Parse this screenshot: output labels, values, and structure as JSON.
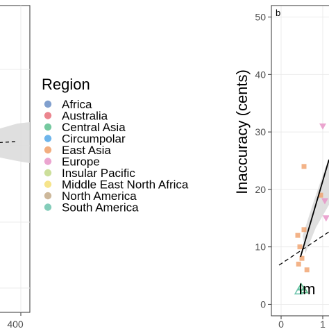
{
  "chart_data": [
    {
      "panel": "left (cropped)",
      "type": "scatter",
      "x_ticks": [
        "400"
      ],
      "grid": true
    },
    {
      "panel": "b",
      "type": "scatter",
      "tag": "b",
      "ylabel": "Inaccuracy (cents)",
      "xlabel": "Im",
      "ylim": [
        -2,
        52
      ],
      "y_ticks": [
        0,
        10,
        20,
        30,
        40,
        50
      ],
      "x_ticks": [
        "0",
        "1"
      ],
      "grid": true,
      "points": [
        {
          "x": 0.55,
          "y": 24,
          "region": "East Asia",
          "shape": "square"
        },
        {
          "x": 0.95,
          "y": 19,
          "region": "East Asia",
          "shape": "square"
        },
        {
          "x": 0.55,
          "y": 13,
          "region": "East Asia",
          "shape": "square"
        },
        {
          "x": 0.45,
          "y": 10,
          "region": "East Asia",
          "shape": "square"
        },
        {
          "x": 0.5,
          "y": 8,
          "region": "East Asia",
          "shape": "square"
        },
        {
          "x": 0.42,
          "y": 7,
          "region": "East Asia",
          "shape": "square"
        },
        {
          "x": 0.62,
          "y": 6,
          "region": "East Asia",
          "shape": "square"
        },
        {
          "x": 0.4,
          "y": 12,
          "region": "East Asia",
          "shape": "square"
        },
        {
          "x": 0.48,
          "y": 3,
          "region": "Central Asia",
          "shape": "triangle"
        },
        {
          "x": 0.42,
          "y": 2.3,
          "region": "South America",
          "shape": "triangle"
        },
        {
          "x": 0.55,
          "y": 2.5,
          "region": "Central Asia",
          "shape": "triangle"
        },
        {
          "x": 1.0,
          "y": 31,
          "region": "Europe",
          "shape": "triangle-down"
        },
        {
          "x": 1.05,
          "y": 18,
          "region": "Europe",
          "shape": "triangle-down"
        },
        {
          "x": 1.08,
          "y": 15,
          "region": "Europe",
          "shape": "triangle-down"
        }
      ]
    }
  ],
  "legend": {
    "title": "Region",
    "items": [
      {
        "label": "Africa",
        "color": "#6b8fc6"
      },
      {
        "label": "Australia",
        "color": "#e8707a"
      },
      {
        "label": "Central Asia",
        "color": "#5dbf8e"
      },
      {
        "label": "Circumpolar",
        "color": "#55a8e8"
      },
      {
        "label": "East Asia",
        "color": "#f0a06a"
      },
      {
        "label": "Europe",
        "color": "#e895c8"
      },
      {
        "label": "Insular Pacific",
        "color": "#c3d98a"
      },
      {
        "label": "Middle East North Africa",
        "color": "#f5df77"
      },
      {
        "label": "North America",
        "color": "#c4ac8a"
      },
      {
        "label": "South America",
        "color": "#6fc4ae"
      }
    ]
  }
}
